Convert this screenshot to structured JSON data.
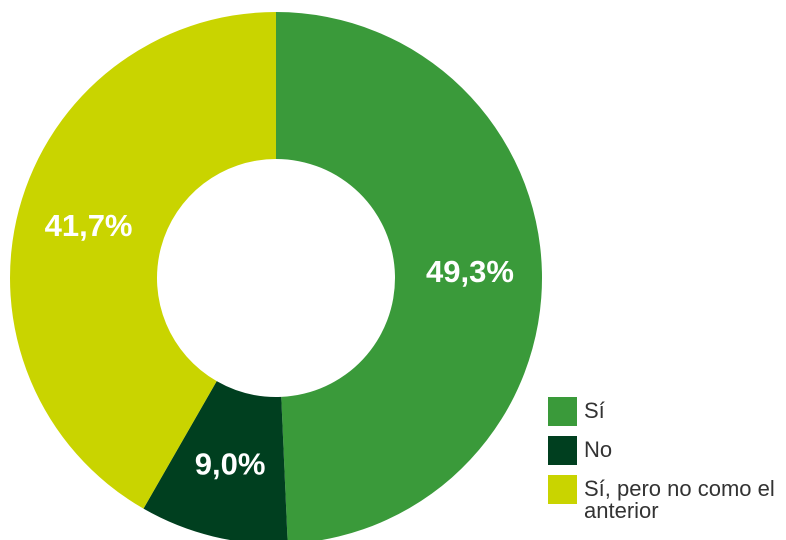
{
  "chart_data": {
    "type": "donut",
    "categories": [
      "Sí",
      "No",
      "Sí, pero no como el anterior"
    ],
    "values": [
      49.3,
      9.0,
      41.7
    ],
    "value_labels": [
      "49,3%",
      "9,0%",
      "41,7%"
    ],
    "colors": [
      "#3a9a3a",
      "#003f1f",
      "#c9d400"
    ],
    "legend": "bottom-right"
  }
}
